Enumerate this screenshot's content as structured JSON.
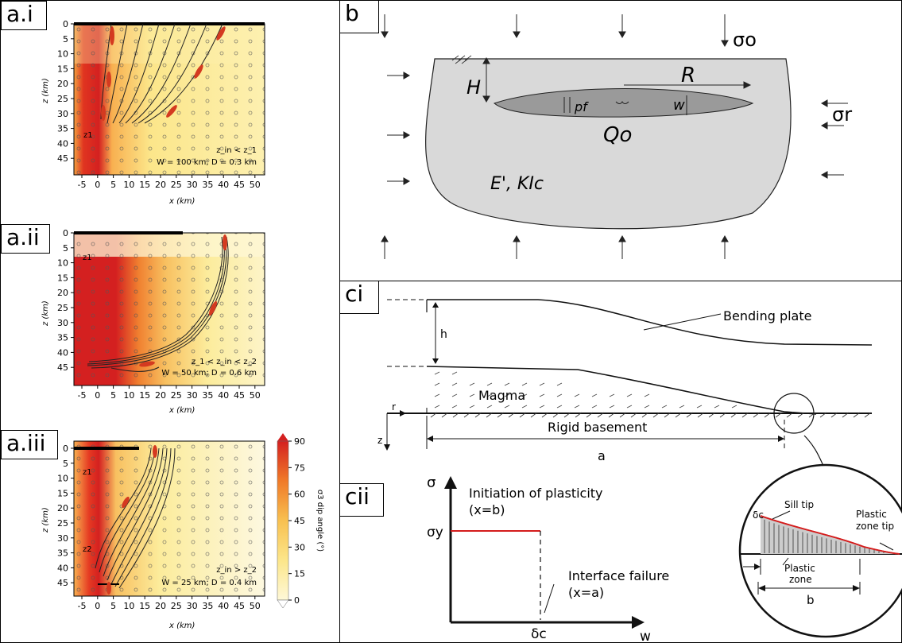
{
  "panels": {
    "ai": {
      "label": "a.i",
      "annotation_z": "z_in < z_1",
      "annotation_w": "W = 100 km; D = 0.3 km",
      "z1": "z1"
    },
    "aii": {
      "label": "a.ii",
      "annotation_z": "z_1 < z_in < z_2",
      "annotation_w": "W = 50 km; D = 0.6 km",
      "z1": "z1"
    },
    "aiii": {
      "label": "a.iii",
      "annotation_z": "z_in > z_2",
      "annotation_w": "W = 25 km; D = 0.4 km",
      "z1": "z1",
      "z2": "z2"
    },
    "b": {
      "label": "b",
      "sigma_o": "σo",
      "sigma_r": "σr",
      "H": "H",
      "R": "R",
      "pf": "pf",
      "w": "w",
      "Qo": "Qo",
      "EK": "E', KIc"
    },
    "ci": {
      "label": "ci",
      "h": "h",
      "bending_plate": "Bending plate",
      "magma": "Magma",
      "rigid_basement": "Rigid basement",
      "a": "a",
      "r": "r",
      "z": "z"
    },
    "cii": {
      "label": "cii",
      "sigma": "σ",
      "sigma_y": "σy",
      "initiation": "Initiation of plasticity",
      "initiation_x": "(x=b)",
      "failure": "Interface failure",
      "failure_x": "(x=a)",
      "delta_c": "δc",
      "w": "w"
    },
    "inset": {
      "sill_tip": "Sill tip",
      "plastic_zone_tip_1": "Plastic",
      "plastic_zone_tip_2": "zone tip",
      "plastic_zone_1": "Plastic",
      "plastic_zone_2": "zone",
      "delta_c": "δc",
      "b": "b"
    }
  },
  "axes": {
    "x_ticks": [
      "-5",
      "0",
      "5",
      "10",
      "15",
      "20",
      "25",
      "30",
      "35",
      "40",
      "45",
      "50"
    ],
    "z_ticks": [
      "0",
      "5",
      "10",
      "15",
      "20",
      "25",
      "30",
      "35",
      "40",
      "45"
    ],
    "x_label": "x (km)",
    "z_label": "z (km)"
  },
  "colorbar": {
    "ticks": [
      "90",
      "75",
      "60",
      "45",
      "30",
      "15",
      "0"
    ],
    "label": "σ3 dip angle (°)",
    "colors": [
      "#d42020",
      "#f07a28",
      "#f8c050",
      "#fce68a",
      "#fef8d8"
    ]
  }
}
